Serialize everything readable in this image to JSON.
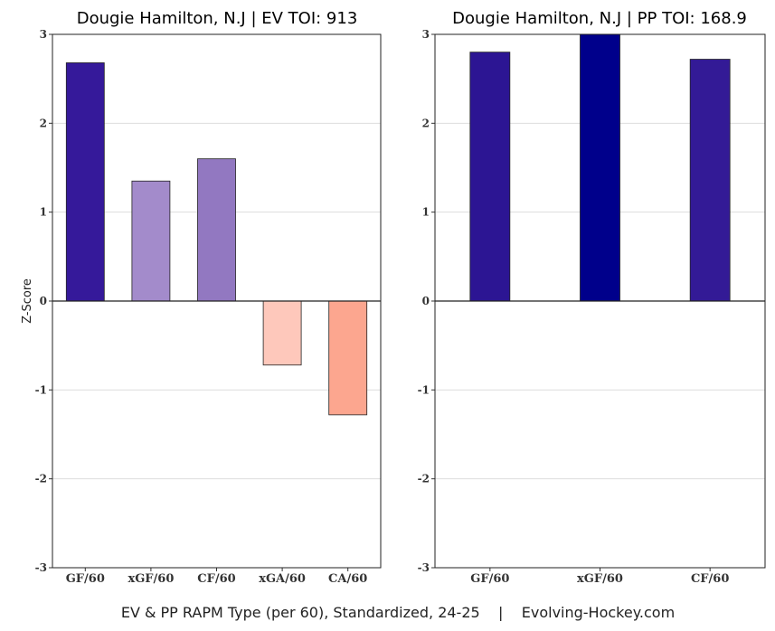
{
  "footer": "EV & PP RAPM Type (per 60), Standardized, 24-25    |    Evolving-Hockey.com",
  "chart_data": [
    {
      "type": "bar",
      "title": "Dougie Hamilton, N.J  |  EV TOI: 913",
      "ylabel": "Z-Score",
      "xlabel": "",
      "ylim": [
        -3,
        3
      ],
      "yticks": [
        -3,
        -2,
        -1,
        0,
        1,
        2,
        3
      ],
      "grid": true,
      "categories": [
        "GF/60",
        "xGF/60",
        "CF/60",
        "xGA/60",
        "CA/60"
      ],
      "values": [
        2.68,
        1.35,
        1.6,
        -0.72,
        -1.28
      ],
      "colors": [
        "#35199a",
        "#a38bcb",
        "#9278c1",
        "#fec8bb",
        "#fca68f"
      ]
    },
    {
      "type": "bar",
      "title": "Dougie Hamilton, N.J  |  PP TOI: 168.9",
      "ylabel": "",
      "xlabel": "",
      "ylim": [
        -3,
        3
      ],
      "yticks": [
        -3,
        -2,
        -1,
        0,
        1,
        2,
        3
      ],
      "grid": true,
      "categories": [
        "GF/60",
        "xGF/60",
        "CF/60"
      ],
      "values": [
        2.8,
        3.0,
        2.72
      ],
      "colors": [
        "#2c1593",
        "#00008b",
        "#331a96"
      ]
    }
  ]
}
